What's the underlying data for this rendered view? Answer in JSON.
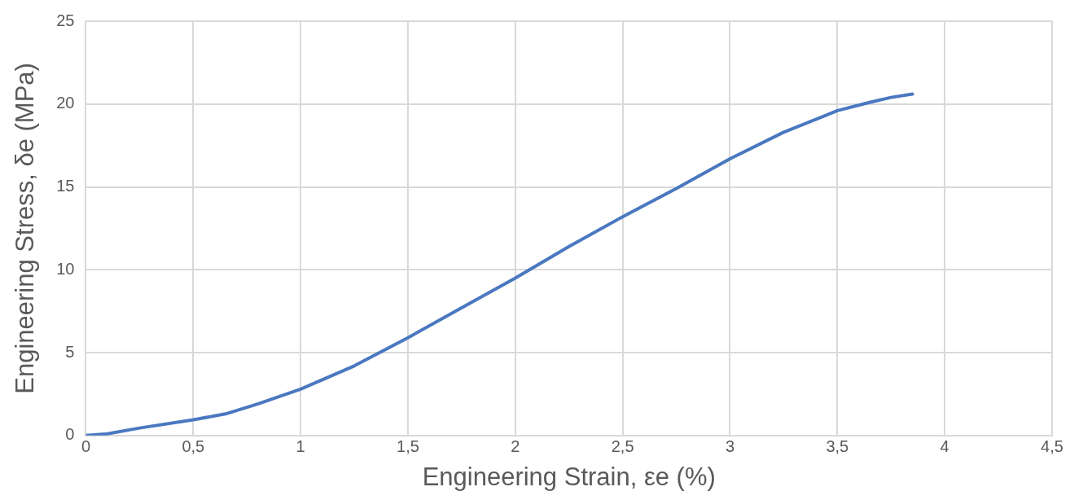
{
  "chart_data": {
    "type": "line",
    "xlabel": "Engineering Strain, εe (%)",
    "ylabel": "Engineering Stress, δe (MPa)",
    "x": [
      0,
      0.1,
      0.25,
      0.5,
      0.65,
      0.8,
      1,
      1.25,
      1.5,
      1.75,
      2,
      2.25,
      2.5,
      2.75,
      3,
      3.25,
      3.5,
      3.65,
      3.75,
      3.85
    ],
    "series": [
      {
        "color": "#4a78c0",
        "values": [
          0,
          0.1,
          0.45,
          0.95,
          1.3,
          1.9,
          2.8,
          4.2,
          5.9,
          7.7,
          9.5,
          11.4,
          13.2,
          14.9,
          16.7,
          18.3,
          19.6,
          20.1,
          20.4,
          20.6
        ]
      }
    ],
    "xlim": [
      0,
      4.5
    ],
    "xticks": [
      0,
      {
        "value": 0.5,
        "label": "0,5"
      },
      1,
      {
        "value": 1.5,
        "label": "1,5"
      },
      2,
      {
        "value": 2.5,
        "label": "2,5"
      },
      3,
      {
        "value": 3.5,
        "label": "3,5"
      },
      4,
      {
        "value": 4.5,
        "label": "4,5"
      }
    ],
    "ylim": [
      0,
      25
    ],
    "yticks": [
      0,
      5,
      10,
      15,
      20,
      25
    ],
    "grid": true,
    "legend": false,
    "marker": "none",
    "line_style": "solid"
  }
}
